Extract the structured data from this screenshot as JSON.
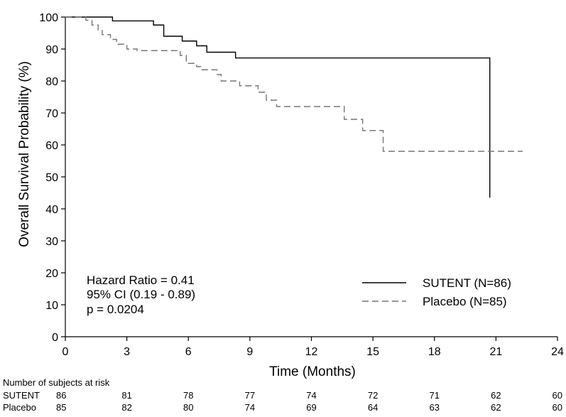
{
  "chart_data": {
    "type": "line",
    "xlabel": "Time (Months)",
    "ylabel": "Overall Survival Probability (%)",
    "xlim": [
      0,
      24
    ],
    "ylim": [
      0,
      100
    ],
    "xticks": [
      "0",
      "3",
      "6",
      "9",
      "12",
      "15",
      "18",
      "21",
      "24"
    ],
    "yticks": [
      "0",
      "10",
      "20",
      "30",
      "40",
      "50",
      "60",
      "70",
      "80",
      "90",
      "100"
    ],
    "grid": false,
    "legend_position": "bottom-right",
    "series": [
      {
        "name": "SUTENT (N=86)",
        "line_style": "solid",
        "color": "#000000",
        "points": [
          [
            0,
            100
          ],
          [
            2.3,
            98.8
          ],
          [
            4.3,
            97.5
          ],
          [
            4.8,
            94
          ],
          [
            5.7,
            92.5
          ],
          [
            6.4,
            91
          ],
          [
            6.9,
            89
          ],
          [
            8.3,
            87.2
          ],
          [
            20.7,
            87.2
          ],
          [
            20.7,
            43.5
          ]
        ]
      },
      {
        "name": "Placebo (N=85)",
        "line_style": "dashed",
        "color": "#777777",
        "points": [
          [
            0,
            100
          ],
          [
            1.0,
            99
          ],
          [
            1.3,
            97.5
          ],
          [
            1.6,
            96
          ],
          [
            1.8,
            94.5
          ],
          [
            2.2,
            93
          ],
          [
            2.5,
            91.5
          ],
          [
            3.0,
            90
          ],
          [
            3.5,
            89.5
          ],
          [
            5.6,
            88
          ],
          [
            5.9,
            85.5
          ],
          [
            6.4,
            84.5
          ],
          [
            6.6,
            83.5
          ],
          [
            7.4,
            82
          ],
          [
            7.6,
            80
          ],
          [
            8.5,
            78.5
          ],
          [
            9.4,
            76.5
          ],
          [
            9.8,
            74
          ],
          [
            10.3,
            72
          ],
          [
            13.6,
            72
          ],
          [
            13.6,
            68
          ],
          [
            14.5,
            64.5
          ],
          [
            15.5,
            58
          ],
          [
            22.3,
            58
          ]
        ]
      }
    ],
    "annotations": [
      "Hazard Ratio = 0.41",
      "95% CI (0.19 - 0.89)",
      "p = 0.0204"
    ],
    "risk_table": {
      "title": "Number of subjects at risk",
      "times": [
        0,
        3,
        6,
        9,
        12,
        15,
        18,
        21,
        24
      ],
      "rows": [
        {
          "label": "SUTENT",
          "counts": [
            "86",
            "81",
            "78",
            "77",
            "74",
            "72",
            "71",
            "62",
            "60"
          ]
        },
        {
          "label": "Placebo",
          "counts": [
            "85",
            "82",
            "80",
            "74",
            "69",
            "64",
            "63",
            "62",
            "60"
          ]
        }
      ]
    }
  }
}
